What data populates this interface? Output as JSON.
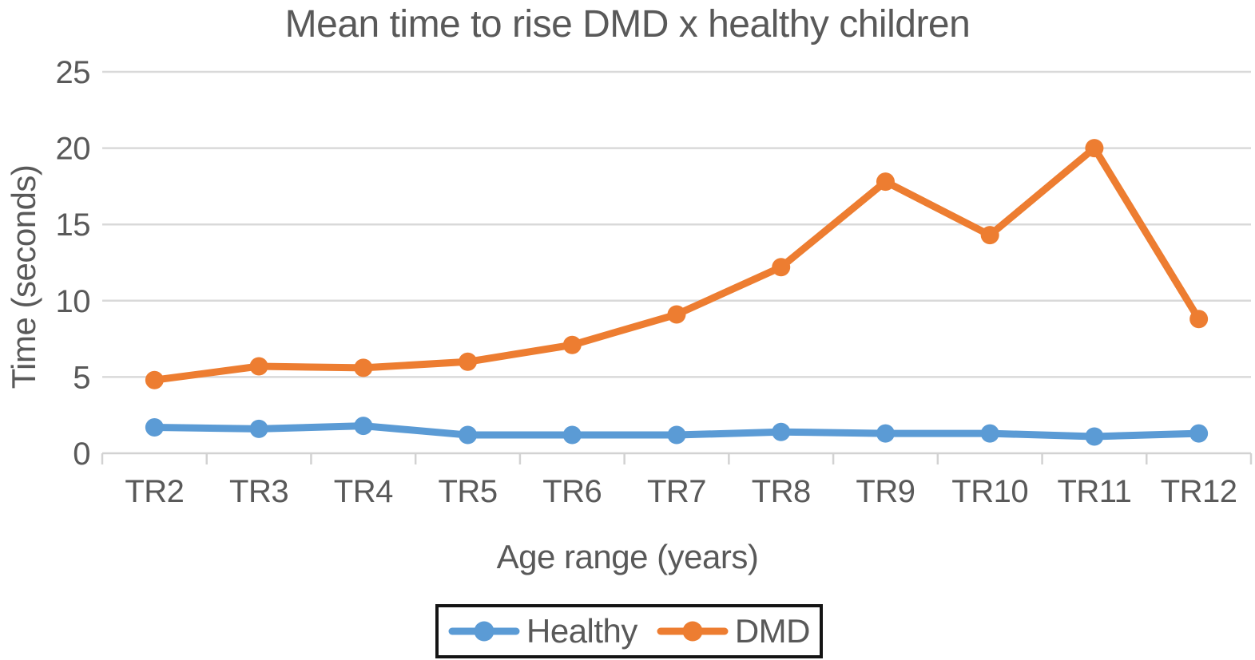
{
  "chart_data": {
    "type": "line",
    "title": "Mean time to rise DMD x healthy children",
    "xlabel": "Age range (years)",
    "ylabel": "Time (seconds)",
    "categories": [
      "TR2",
      "TR3",
      "TR4",
      "TR5",
      "TR6",
      "TR7",
      "TR8",
      "TR9",
      "TR10",
      "TR11",
      "TR12"
    ],
    "series": [
      {
        "name": "Healthy",
        "color": "#5B9BD5",
        "values": [
          1.7,
          1.6,
          1.8,
          1.2,
          1.2,
          1.2,
          1.4,
          1.3,
          1.3,
          1.1,
          1.3
        ]
      },
      {
        "name": "DMD",
        "color": "#ED7D31",
        "values": [
          4.8,
          5.7,
          5.6,
          6.0,
          7.1,
          9.1,
          12.2,
          17.8,
          14.3,
          20.0,
          8.8
        ]
      }
    ],
    "y_ticks": [
      0,
      5,
      10,
      15,
      20,
      25
    ],
    "ylim": [
      0,
      25
    ],
    "grid": true,
    "legend_position": "bottom"
  },
  "colors": {
    "background": "#FFFFFF",
    "grid": "#D9D9D9",
    "axis": "#D2D2D2",
    "text": "#595959",
    "legend_border": "#141414"
  }
}
